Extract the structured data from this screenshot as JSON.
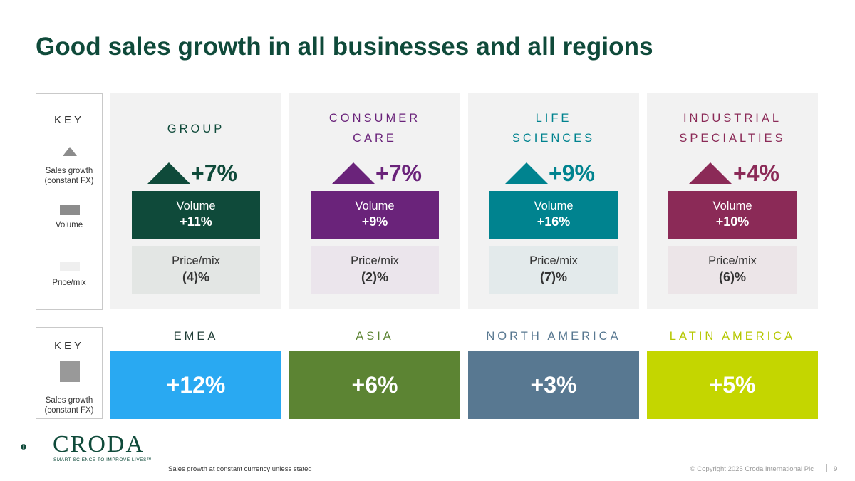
{
  "title": "Good sales growth in all businesses and all regions",
  "key_business": {
    "title": "KEY",
    "sales_growth_label": "Sales growth (constant FX)",
    "volume_label": "Volume",
    "price_mix_label": "Price/mix"
  },
  "key_region": {
    "title": "KEY",
    "sales_growth_label": "Sales growth (constant FX)"
  },
  "businesses": [
    {
      "name_line1": "GROUP",
      "name_line2": "",
      "growth": "+7%",
      "volume_label": "Volume",
      "volume_value": "+11%",
      "price_mix_label": "Price/mix",
      "price_mix_value": "(4)%",
      "color": "#0f4a3a",
      "light_color": "#e3e6e4"
    },
    {
      "name_line1": "CONSUMER",
      "name_line2": "CARE",
      "growth": "+7%",
      "volume_label": "Volume",
      "volume_value": "+9%",
      "price_mix_label": "Price/mix",
      "price_mix_value": "(2)%",
      "color": "#6a237a",
      "light_color": "#ebe5ec"
    },
    {
      "name_line1": "LIFE",
      "name_line2": "SCIENCES",
      "growth": "+9%",
      "volume_label": "Volume",
      "volume_value": "+16%",
      "price_mix_label": "Price/mix",
      "price_mix_value": "(7)%",
      "color": "#00838f",
      "light_color": "#e3eaeb"
    },
    {
      "name_line1": "INDUSTRIAL",
      "name_line2": "SPECIALTIES",
      "growth": "+4%",
      "volume_label": "Volume",
      "volume_value": "+10%",
      "price_mix_label": "Price/mix",
      "price_mix_value": "(6)%",
      "color": "#8b2a57",
      "light_color": "#ece5e8"
    }
  ],
  "regions": [
    {
      "name": "EMEA",
      "growth": "+12%",
      "color": "#29a9f2",
      "name_color": "#1f3d36"
    },
    {
      "name": "ASIA",
      "growth": "+6%",
      "color": "#5c8433",
      "name_color": "#5c8433"
    },
    {
      "name": "NORTH AMERICA",
      "growth": "+3%",
      "color": "#587891",
      "name_color": "#587891"
    },
    {
      "name": "LATIN AMERICA",
      "growth": "+5%",
      "color": "#c4d600",
      "name_color": "#b5c700"
    }
  ],
  "logo": {
    "wordmark": "CRODA",
    "tagline": "SMART SCIENCE TO IMPROVE LIVES™"
  },
  "footer": {
    "note": "Sales growth at constant currency unless stated",
    "copyright": "© Copyright 2025 Croda International Plc",
    "page_number": "9"
  }
}
